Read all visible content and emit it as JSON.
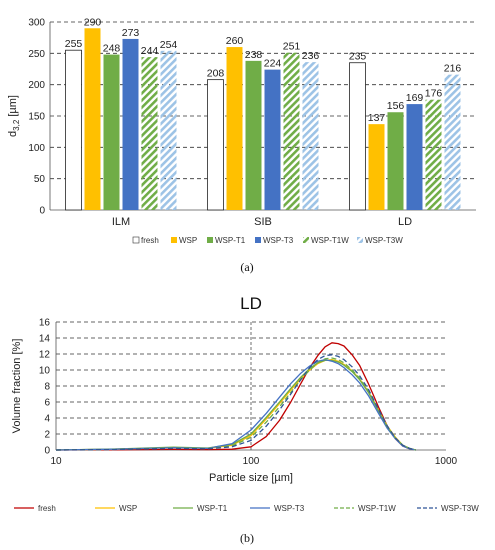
{
  "chart_data": [
    {
      "type": "bar",
      "panel_label": "(a)",
      "ylabel_main": "d",
      "ylabel_sub": "3,2",
      "ylabel_unit": " [µm]",
      "ylim": [
        0,
        300
      ],
      "yticks": [
        "0",
        "50",
        "100",
        "150",
        "200",
        "250",
        "300"
      ],
      "grid": "horizontal dashed",
      "legend_position": "bottom",
      "categories": [
        "ILM",
        "SIB",
        "LD"
      ],
      "series": [
        {
          "name": "fresh",
          "color": "#ffffff",
          "pattern": "solid",
          "values": [
            255,
            208,
            235
          ]
        },
        {
          "name": "WSP",
          "color": "#ffc000",
          "pattern": "solid",
          "values": [
            290,
            260,
            137
          ]
        },
        {
          "name": "WSP-T1",
          "color": "#70ad47",
          "pattern": "solid",
          "values": [
            248,
            238,
            156
          ]
        },
        {
          "name": "WSP-T3",
          "color": "#4472c4",
          "pattern": "solid",
          "values": [
            273,
            224,
            169
          ]
        },
        {
          "name": "WSP-T1W",
          "color": "#70ad47",
          "pattern": "hatch",
          "values": [
            244,
            251,
            176
          ]
        },
        {
          "name": "WSP-T3W",
          "color": "#9dc3e6",
          "pattern": "hatch",
          "values": [
            254,
            236,
            216
          ]
        }
      ]
    },
    {
      "type": "line",
      "panel_label": "(b)",
      "title": "LD",
      "xlabel": "Particle size [µm]",
      "ylabel": "Volume fraction [%]",
      "x_scale": "log",
      "xlim": [
        10,
        1000
      ],
      "xticks": [
        "10",
        "100",
        "1000"
      ],
      "ylim": [
        0,
        16
      ],
      "yticks": [
        "0",
        "2",
        "4",
        "6",
        "8",
        "10",
        "12",
        "14",
        "16"
      ],
      "grid": "horizontal dashed",
      "legend_position": "bottom",
      "series": [
        {
          "name": "fresh",
          "color": "#c00000",
          "dash": "solid",
          "x": [
            10,
            20,
            40,
            60,
            80,
            100,
            120,
            140,
            160,
            180,
            200,
            220,
            240,
            260,
            280,
            300,
            330,
            360,
            400,
            450,
            500,
            550,
            600,
            650,
            700
          ],
          "y": [
            0,
            0.02,
            0.08,
            0.05,
            0.1,
            0.4,
            1.7,
            3.7,
            6.0,
            8.3,
            10.3,
            11.8,
            12.9,
            13.4,
            13.3,
            13.0,
            11.9,
            10.6,
            8.3,
            5.4,
            3.0,
            1.4,
            0.5,
            0.15,
            0
          ]
        },
        {
          "name": "WSP",
          "color": "#ffc000",
          "dash": "solid",
          "x": [
            10,
            20,
            40,
            60,
            80,
            100,
            120,
            140,
            160,
            180,
            200,
            220,
            240,
            260,
            280,
            300,
            330,
            360,
            400,
            450,
            500,
            550,
            600,
            650,
            700
          ],
          "y": [
            0,
            0.1,
            0.3,
            0.2,
            0.6,
            1.8,
            3.9,
            5.8,
            7.5,
            8.9,
            10.0,
            10.8,
            11.2,
            11.3,
            11.1,
            10.7,
            9.9,
            8.9,
            7.3,
            5.0,
            3.0,
            1.6,
            0.6,
            0.2,
            0
          ]
        },
        {
          "name": "WSP-T1",
          "color": "#70ad47",
          "dash": "solid",
          "x": [
            10,
            20,
            40,
            60,
            80,
            100,
            120,
            140,
            160,
            180,
            200,
            220,
            240,
            260,
            280,
            300,
            330,
            360,
            400,
            450,
            500,
            550,
            600,
            650,
            700
          ],
          "y": [
            0,
            0.12,
            0.35,
            0.25,
            0.7,
            2.0,
            4.1,
            6.0,
            7.7,
            9.1,
            10.2,
            10.9,
            11.2,
            11.2,
            11.0,
            10.6,
            9.8,
            8.8,
            7.2,
            4.9,
            2.9,
            1.5,
            0.6,
            0.2,
            0
          ]
        },
        {
          "name": "WSP-T3",
          "color": "#4472c4",
          "dash": "solid",
          "x": [
            10,
            20,
            40,
            60,
            80,
            100,
            120,
            140,
            160,
            180,
            200,
            220,
            240,
            260,
            280,
            300,
            330,
            360,
            400,
            450,
            500,
            550,
            600,
            650,
            700
          ],
          "y": [
            0,
            0.1,
            0.3,
            0.2,
            0.8,
            2.5,
            4.6,
            6.6,
            8.3,
            9.6,
            10.5,
            11.1,
            11.3,
            11.1,
            10.8,
            10.3,
            9.4,
            8.4,
            6.8,
            4.6,
            2.7,
            1.4,
            0.5,
            0.15,
            0
          ]
        },
        {
          "name": "WSP-T1W",
          "color": "#70ad47",
          "dash": "dashed",
          "x": [
            10,
            20,
            40,
            60,
            80,
            100,
            120,
            140,
            160,
            180,
            200,
            220,
            240,
            260,
            280,
            300,
            330,
            360,
            400,
            450,
            500,
            550,
            600,
            650,
            700
          ],
          "y": [
            0,
            0.08,
            0.25,
            0.18,
            0.5,
            1.6,
            3.5,
            5.4,
            7.2,
            8.8,
            10.0,
            10.9,
            11.4,
            11.5,
            11.3,
            10.9,
            10.0,
            9.0,
            7.4,
            5.0,
            2.9,
            1.5,
            0.6,
            0.2,
            0
          ]
        },
        {
          "name": "WSP-T3W",
          "color": "#2f5597",
          "dash": "dashed",
          "x": [
            10,
            20,
            40,
            60,
            80,
            100,
            120,
            140,
            160,
            180,
            200,
            220,
            240,
            260,
            280,
            300,
            330,
            360,
            400,
            450,
            500,
            550,
            600,
            650,
            700
          ],
          "y": [
            0,
            0.06,
            0.2,
            0.15,
            0.4,
            1.2,
            3.0,
            5.0,
            7.0,
            8.8,
            10.3,
            11.3,
            11.8,
            11.9,
            11.7,
            11.3,
            10.4,
            9.3,
            7.6,
            5.1,
            3.0,
            1.5,
            0.6,
            0.2,
            0
          ]
        }
      ]
    }
  ]
}
